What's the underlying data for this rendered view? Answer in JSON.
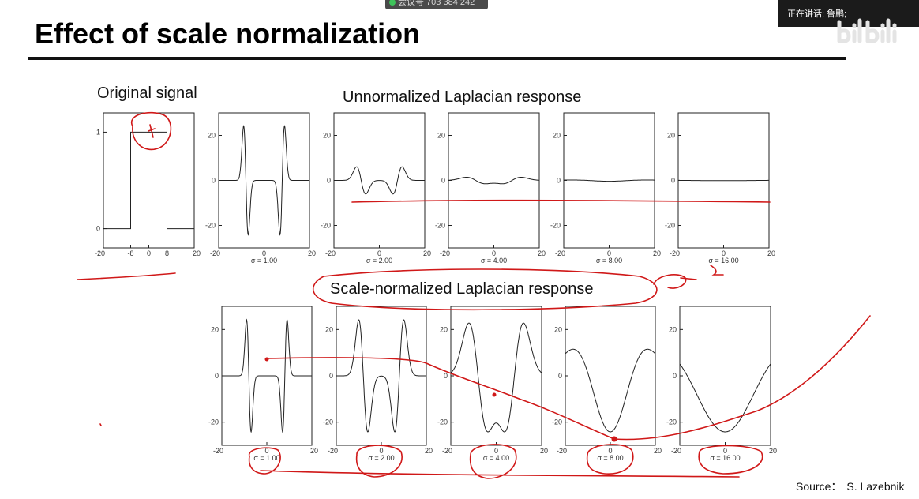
{
  "meeting": {
    "id_text": "会议号 703 384 242"
  },
  "speaker": {
    "label": "正在讲话: 鲁鹏;"
  },
  "slide": {
    "title": "Effect of scale normalization",
    "original_label": "Original signal",
    "unnormalized_label": "Unnormalized Laplacian response",
    "normalized_label": "Scale-normalized Laplacian response",
    "source_label": "Source：",
    "source_name": "S. Lazebnik"
  },
  "icons": [
    "bilibili-watermark-icon"
  ],
  "colors": {
    "ink": "#222222",
    "annotation": "#d01818"
  },
  "chart_data": [
    {
      "type": "line",
      "title": "Original signal",
      "xlabel": "",
      "ylabel": "",
      "x_ticks": [
        "-20",
        "-8",
        "0",
        "8",
        "20"
      ],
      "y_ticks": [
        "1",
        "0"
      ],
      "xlim": [
        -20,
        20
      ],
      "ylim": [
        -0.2,
        1.2
      ],
      "x": [
        -20,
        -8,
        -8,
        8,
        8,
        20
      ],
      "y": [
        0,
        0,
        1,
        1,
        0,
        0
      ]
    },
    {
      "type": "line",
      "xlabel": "σ = 1.00",
      "x_ticks": [
        "-20",
        "0",
        "20"
      ],
      "y_ticks": [
        "20",
        "0",
        "-20"
      ],
      "ylim": [
        -30,
        30
      ],
      "sigma": 1,
      "scale": 24.2
    },
    {
      "type": "line",
      "xlabel": "σ = 2.00",
      "x_ticks": [
        "-20",
        "0",
        "20"
      ],
      "y_ticks": [
        "20",
        "0",
        "-20"
      ],
      "ylim": [
        -30,
        30
      ],
      "sigma": 2,
      "scale": 6.05
    },
    {
      "type": "line",
      "xlabel": "σ = 4.00",
      "x_ticks": [
        "-20",
        "0",
        "20"
      ],
      "y_ticks": [
        "20",
        "0",
        "-20"
      ],
      "ylim": [
        -30,
        30
      ],
      "sigma": 4,
      "scale": 1.5
    },
    {
      "type": "line",
      "xlabel": "σ = 8.00",
      "x_ticks": [
        "-20",
        "0",
        "20"
      ],
      "y_ticks": [
        "20",
        "0",
        "-20"
      ],
      "ylim": [
        -30,
        30
      ],
      "sigma": 8,
      "scale": 0.38
    },
    {
      "type": "line",
      "xlabel": "σ = 16.00",
      "x_ticks": [
        "-20",
        "0",
        "20"
      ],
      "y_ticks": [
        "20",
        "0",
        "-20"
      ],
      "ylim": [
        -30,
        30
      ],
      "sigma": 16,
      "scale": 0.1
    },
    {
      "type": "line",
      "xlabel": "σ = 1.00",
      "x_ticks": [
        "-20",
        "0",
        "20"
      ],
      "y_ticks": [
        "20",
        "0",
        "-20"
      ],
      "ylim": [
        -30,
        30
      ],
      "sigma": 1,
      "scale": 24.2
    },
    {
      "type": "line",
      "xlabel": "σ = 2.00",
      "x_ticks": [
        "-20",
        "0",
        "20"
      ],
      "y_ticks": [
        "20",
        "0",
        "-20"
      ],
      "ylim": [
        -30,
        30
      ],
      "sigma": 2,
      "scale": 24.2
    },
    {
      "type": "line",
      "xlabel": "σ = 4.00",
      "x_ticks": [
        "-20",
        "0",
        "20"
      ],
      "y_ticks": [
        "20",
        "0",
        "-20"
      ],
      "ylim": [
        -30,
        30
      ],
      "sigma": 4,
      "scale": 24.2
    },
    {
      "type": "line",
      "xlabel": "σ = 8.00",
      "x_ticks": [
        "-20",
        "0",
        "20"
      ],
      "y_ticks": [
        "20",
        "0",
        "-20"
      ],
      "ylim": [
        -30,
        30
      ],
      "sigma": 8,
      "scale": 24.2
    },
    {
      "type": "line",
      "xlabel": "σ = 16.00",
      "x_ticks": [
        "-20",
        "0",
        "20"
      ],
      "y_ticks": [
        "20",
        "0",
        "-20"
      ],
      "ylim": [
        -30,
        30
      ],
      "sigma": 16,
      "scale": 24.2
    }
  ]
}
